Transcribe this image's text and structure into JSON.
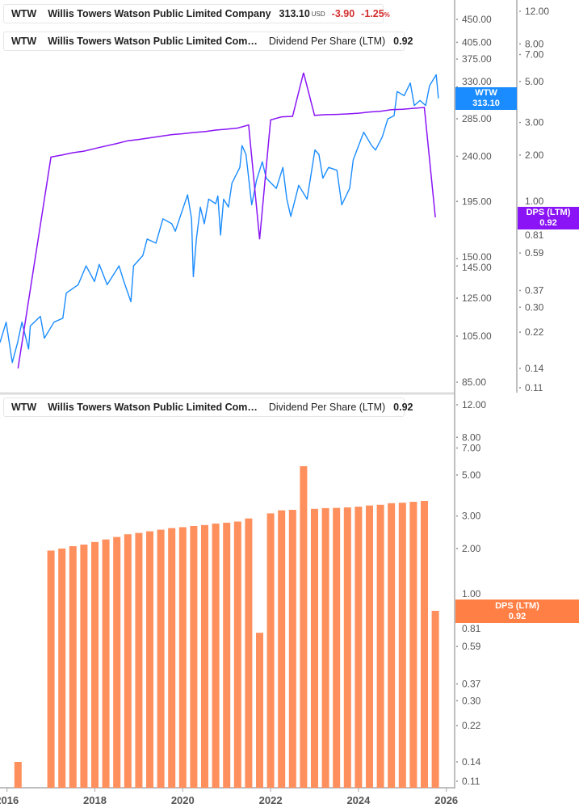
{
  "legend_price": {
    "ticker": "WTW",
    "name": "Willis Towers Watson Public Limited Company",
    "price": "313.10",
    "currency": "USD",
    "change": "-3.90",
    "change_pct": "-1.25",
    "pct_sign": "%"
  },
  "legend_dps_top": {
    "ticker": "WTW",
    "name": "Willis Towers Watson Public Limited Com…",
    "metric": "Dividend Per Share (LTM)",
    "value": "0.92"
  },
  "legend_dps_bottom": {
    "ticker": "WTW",
    "name": "Willis Towers Watson Public Limited Com…",
    "metric": "Dividend Per Share (LTM)",
    "value": "0.92"
  },
  "tags": {
    "price": {
      "label": "WTW",
      "value": "313.10"
    },
    "dps_top": {
      "label": "DPS (LTM)",
      "value": "0.92"
    },
    "dps_bottom": {
      "label": "DPS (LTM)",
      "value": "0.92"
    }
  },
  "colors": {
    "price": "#1a8cff",
    "dps_line": "#8a14f5",
    "dps_bar": "#ff8f5c",
    "dps_tag": "#ff7f45",
    "negative": "#d32f2f"
  },
  "chart_data": [
    {
      "type": "line",
      "panel": "top",
      "y_scale": "log",
      "grid": false,
      "x_ticks": [
        "2016",
        "2018",
        "2020",
        "2022",
        "2024",
        "2026"
      ],
      "xlim": [
        2015.84,
        2026.19
      ],
      "y_left_ticks": [
        "450.00",
        "405.00",
        "375.00",
        "330.00",
        "285.00",
        "240.00",
        "195.00",
        "150.00",
        "145.00",
        "125.00",
        "105.00",
        "85.00"
      ],
      "ylim_price": [
        80.4,
        492
      ],
      "y_right_ticks": [
        "12.00",
        "8.00",
        "7.00",
        "5.00",
        "3.00",
        "2.00",
        "1.00",
        "0.81",
        "0.59",
        "0.37",
        "0.30",
        "0.22",
        "0.14",
        "0.11"
      ],
      "ylim_dps": [
        0.101,
        13.8
      ],
      "series": [
        {
          "name": "Willis Towers Watson Public Limited Company",
          "axis": "price",
          "x": [
            2015.84,
            2015.98,
            2016.12,
            2016.24,
            2016.34,
            2016.49,
            2016.53,
            2016.76,
            2016.85,
            2017.07,
            2017.27,
            2017.35,
            2017.62,
            2017.8,
            2017.99,
            2018.1,
            2018.28,
            2018.55,
            2018.66,
            2018.82,
            2018.88,
            2019.09,
            2019.19,
            2019.39,
            2019.55,
            2019.75,
            2019.83,
            2019.97,
            2020.11,
            2020.2,
            2020.24,
            2020.31,
            2020.4,
            2020.49,
            2020.59,
            2020.75,
            2020.8,
            2020.86,
            2020.93,
            2021.04,
            2021.12,
            2021.3,
            2021.35,
            2021.44,
            2021.57,
            2021.68,
            2021.81,
            2021.9,
            2022.13,
            2022.28,
            2022.37,
            2022.46,
            2022.64,
            2022.83,
            2023.01,
            2023.1,
            2023.19,
            2023.32,
            2023.51,
            2023.62,
            2023.8,
            2023.88,
            2024.12,
            2024.3,
            2024.39,
            2024.54,
            2024.67,
            2024.81,
            2024.88,
            2025.04,
            2025.18,
            2025.27,
            2025.4,
            2025.53,
            2025.62,
            2025.77,
            2025.82
          ],
          "y": [
            102,
            112,
            93,
            102,
            112,
            99,
            110,
            115,
            104,
            112,
            114,
            128,
            133,
            145,
            135,
            146,
            133,
            145,
            135,
            123,
            145,
            152,
            164,
            161,
            180,
            176,
            170,
            185,
            201,
            180,
            138,
            164,
            190,
            176,
            197,
            193,
            200,
            167,
            197,
            190,
            212,
            228,
            252,
            242,
            192,
            215,
            234,
            217,
            207,
            228,
            197,
            182,
            210,
            197,
            247,
            242,
            217,
            228,
            225,
            192,
            207,
            236,
            268,
            252,
            247,
            262,
            285,
            289,
            323,
            317,
            336,
            303,
            310,
            303,
            332,
            349,
            313.1
          ]
        },
        {
          "name": "Dividend Per Share (LTM)",
          "axis": "dps",
          "ref": "dps"
        }
      ]
    },
    {
      "type": "bar",
      "panel": "bottom",
      "y_scale": "log",
      "grid": false,
      "x_ticks": [
        "2016",
        "2018",
        "2020",
        "2022",
        "2024",
        "2026"
      ],
      "xlim": [
        2015.84,
        2026.19
      ],
      "y_ticks": [
        "12.00",
        "8.00",
        "7.00",
        "5.00",
        "3.00",
        "2.00",
        "1.00",
        "0.81",
        "0.59",
        "0.37",
        "0.30",
        "0.22",
        "0.14",
        "0.11"
      ],
      "ylim": [
        0.101,
        13.4
      ],
      "series": [
        {
          "name": "Dividend Per Share (LTM)",
          "x": [
            2016.25,
            2017.0,
            2017.25,
            2017.5,
            2017.75,
            2018.0,
            2018.25,
            2018.5,
            2018.75,
            2019.0,
            2019.25,
            2019.5,
            2019.75,
            2020.0,
            2020.25,
            2020.5,
            2020.75,
            2021.0,
            2021.25,
            2021.5,
            2021.75,
            2022.0,
            2022.25,
            2022.5,
            2022.75,
            2023.0,
            2023.25,
            2023.5,
            2023.75,
            2024.0,
            2024.25,
            2024.5,
            2024.75,
            2025.0,
            2025.25,
            2025.5,
            2025.75
          ],
          "y": [
            0.14,
            1.95,
            2.0,
            2.06,
            2.1,
            2.17,
            2.24,
            2.31,
            2.39,
            2.43,
            2.48,
            2.53,
            2.58,
            2.61,
            2.65,
            2.68,
            2.73,
            2.76,
            2.8,
            2.91,
            0.7,
            3.1,
            3.22,
            3.24,
            5.58,
            3.28,
            3.31,
            3.32,
            3.34,
            3.37,
            3.42,
            3.45,
            3.52,
            3.54,
            3.58,
            3.62,
            0.92
          ]
        }
      ]
    }
  ]
}
